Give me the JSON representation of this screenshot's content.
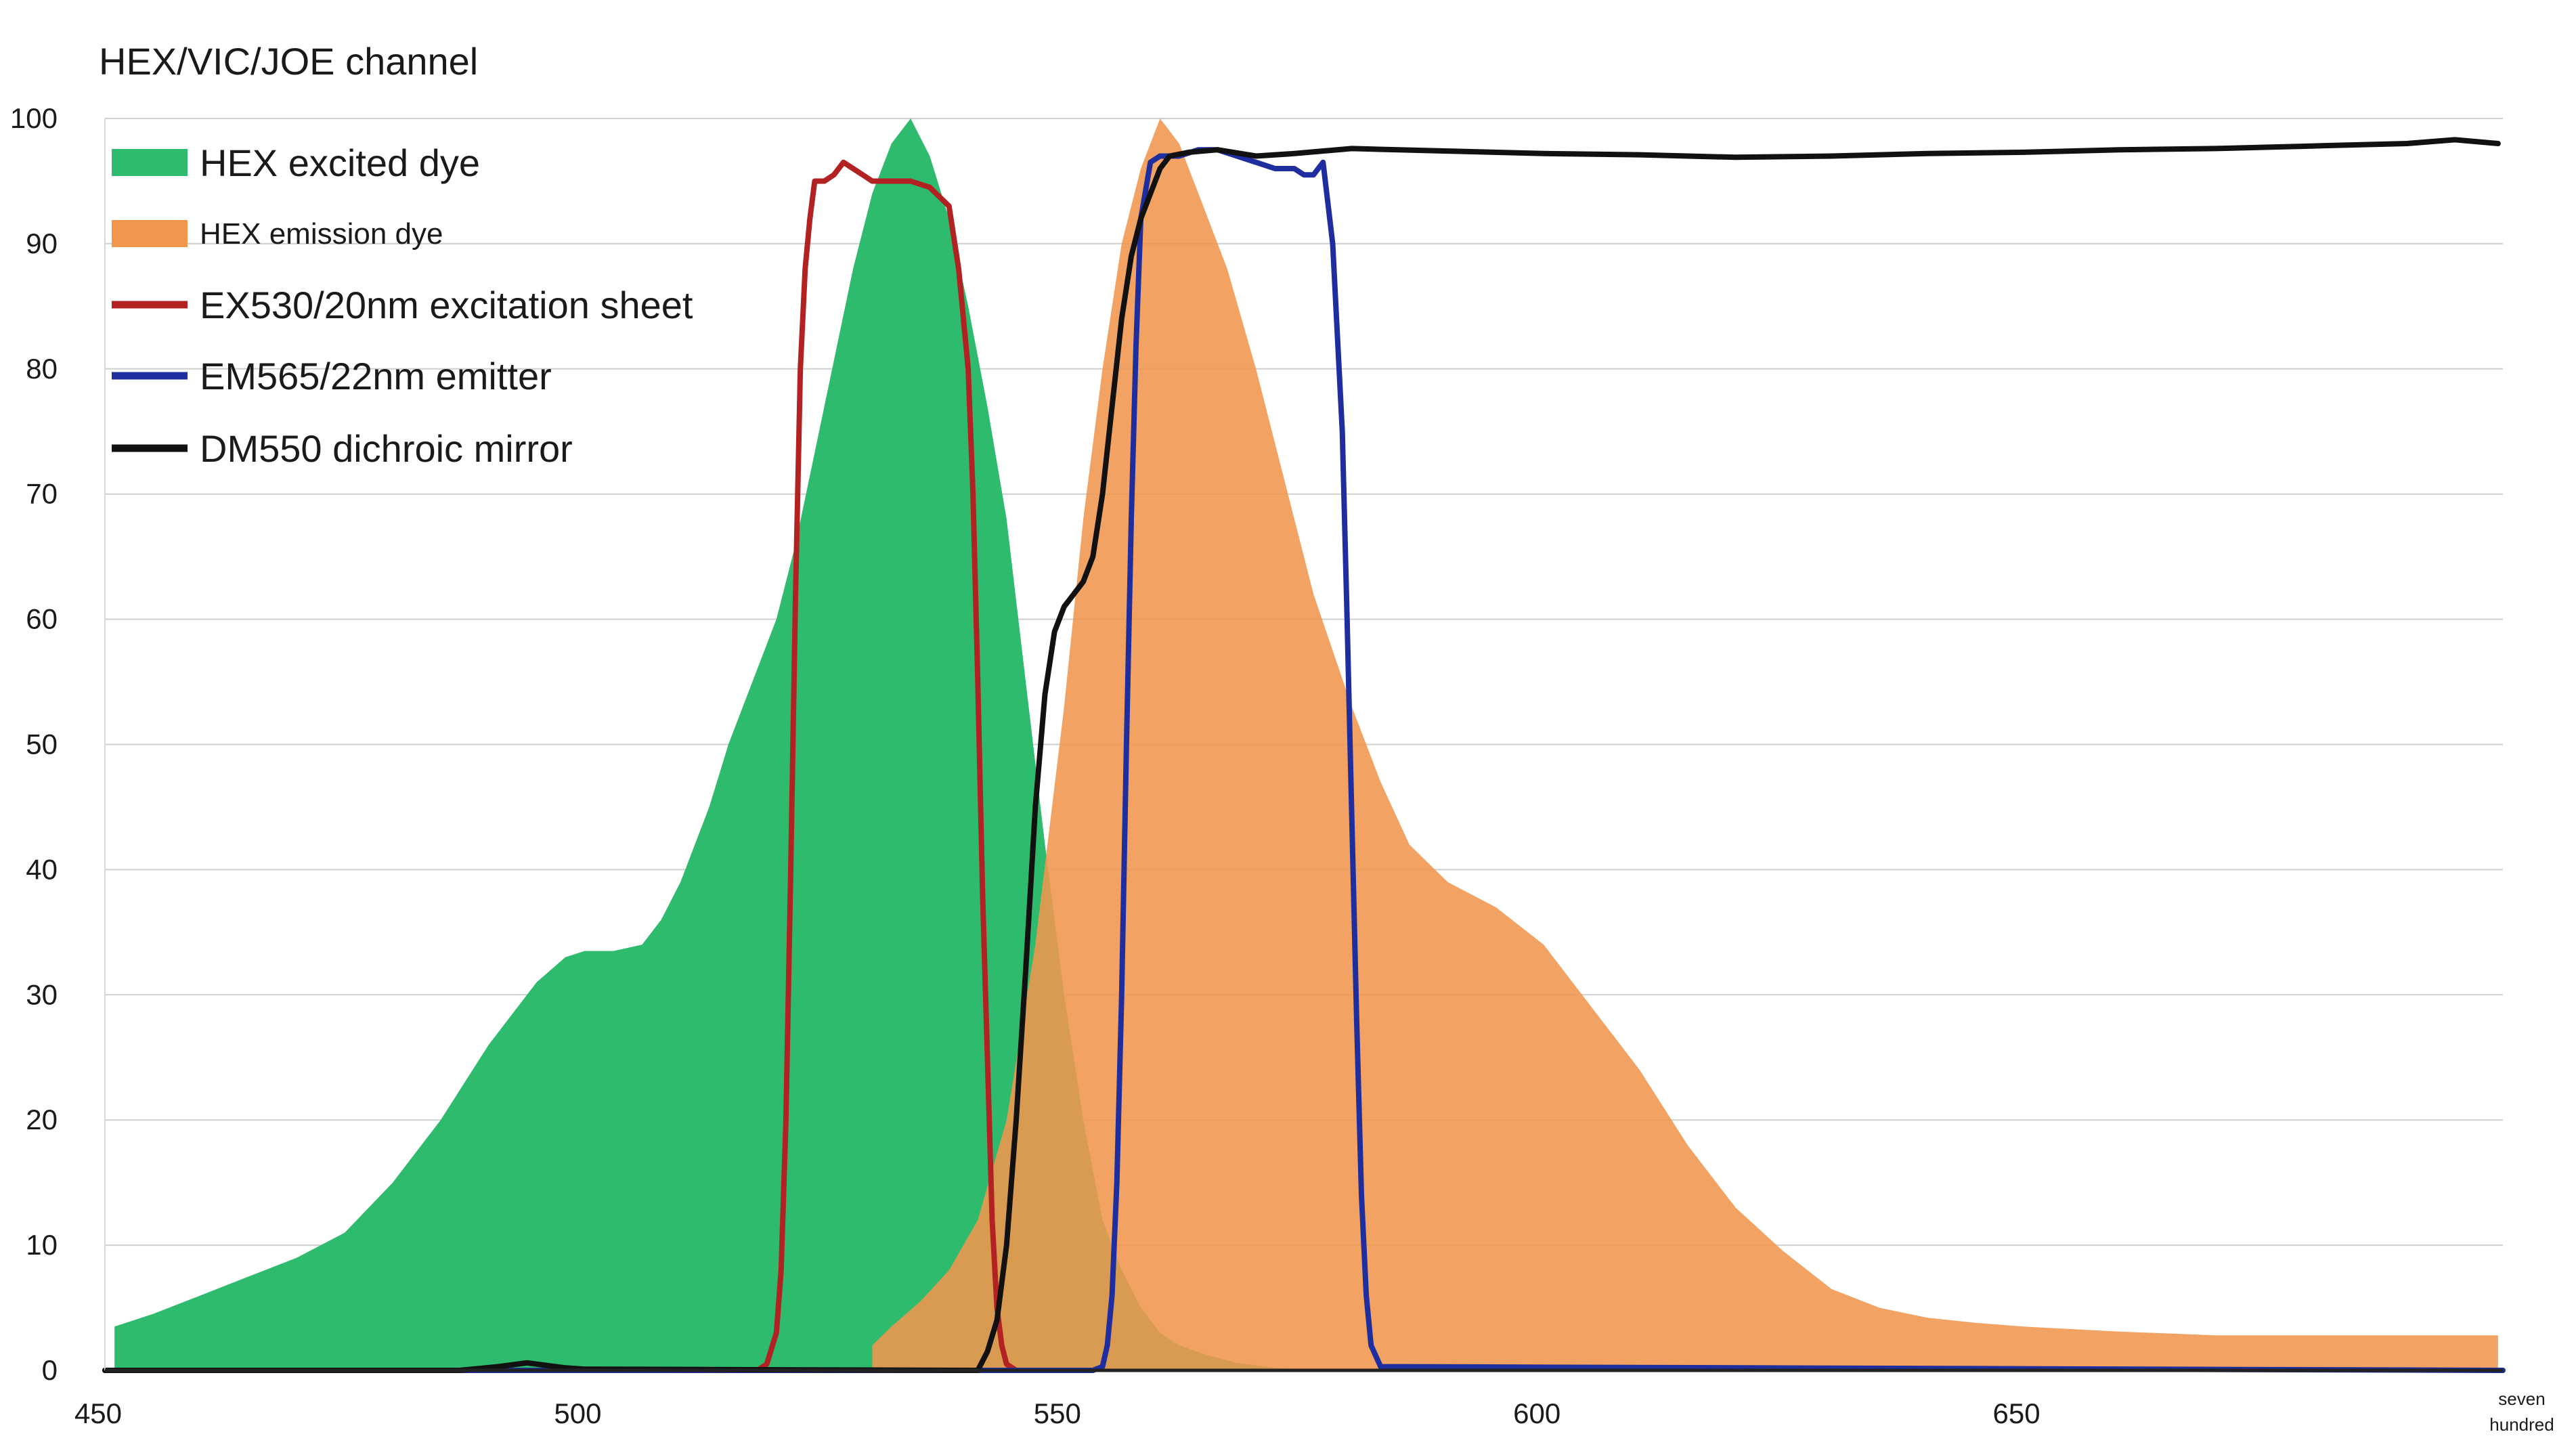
{
  "chart_data": {
    "type": "area",
    "title": "HEX/VIC/JOE channel",
    "xlabel": "",
    "ylabel": "",
    "xlim": [
      450,
      700
    ],
    "ylim": [
      0,
      100
    ],
    "grid": true,
    "legend_position": "top-left",
    "y_ticks": [
      "0",
      "10",
      "20",
      "30",
      "40",
      "50",
      "60",
      "70",
      "80",
      "90",
      "100"
    ],
    "x_ticks": [
      {
        "value": 450,
        "label": "450"
      },
      {
        "value": 500,
        "label": "500"
      },
      {
        "value": 550,
        "label": "550"
      },
      {
        "value": 600,
        "label": "600"
      },
      {
        "value": 650,
        "label": "650"
      },
      {
        "value": 700,
        "label": "seven hundred",
        "lines": [
          "seven",
          "hundred"
        ]
      }
    ],
    "series": [
      {
        "name": "HEX excited dye",
        "style": "area",
        "color": "#2fbb6e",
        "x": [
          451,
          455,
          460,
          465,
          470,
          475,
          480,
          485,
          490,
          495,
          498,
          500,
          503,
          506,
          508,
          510,
          513,
          515,
          518,
          520,
          522,
          525,
          528,
          530,
          532,
          534,
          536,
          538,
          540,
          542,
          544,
          546,
          548,
          550,
          552,
          554,
          556,
          558,
          560,
          562,
          565,
          568,
          572,
          576,
          578
        ],
        "values": [
          3.5,
          4.5,
          6,
          7.5,
          9,
          11,
          15,
          20,
          26,
          31,
          33,
          33.5,
          33.5,
          34,
          36,
          39,
          45,
          50,
          56,
          60,
          66,
          77,
          88,
          94,
          98,
          100,
          97,
          92,
          85,
          77,
          68,
          55,
          42,
          30,
          20,
          12,
          8,
          5,
          3,
          2,
          1.2,
          0.6,
          0.2,
          0.05,
          0
        ]
      },
      {
        "name": "HEX emission dye",
        "style": "area",
        "color": "#f0964d",
        "x": [
          530,
          532,
          535,
          538,
          541,
          544,
          547,
          550,
          552,
          554,
          556,
          558,
          560,
          562,
          564,
          567,
          570,
          573,
          576,
          580,
          583,
          586,
          590,
          595,
          600,
          605,
          610,
          615,
          620,
          625,
          630,
          635,
          640,
          645,
          650,
          660,
          670,
          675,
          680,
          690,
          699.5
        ],
        "values": [
          2,
          3.5,
          5.5,
          8,
          12,
          20,
          34,
          53,
          68,
          80,
          90,
          96,
          100,
          98,
          94,
          88,
          80,
          71,
          62,
          53,
          47,
          42,
          39,
          37,
          34,
          29,
          24,
          18,
          13,
          9.5,
          6.5,
          5,
          4.2,
          3.8,
          3.5,
          3.1,
          2.8,
          2.8,
          2.8,
          2.8,
          2.8
        ]
      },
      {
        "name": "EX530/20nm excitation sheet",
        "style": "line",
        "color": "#b22222",
        "x": [
          450,
          518,
          519,
          520,
          520.5,
          521,
          521.5,
          522,
          522.5,
          523,
          523.5,
          524,
          525,
          526,
          527,
          528,
          529,
          530,
          532,
          534,
          536,
          538,
          539,
          540,
          540.5,
          541,
          541.5,
          542,
          542.5,
          543,
          543.5,
          544,
          545,
          550
        ],
        "values": [
          0,
          0,
          0.5,
          3,
          8,
          20,
          40,
          62,
          80,
          88,
          92,
          95,
          95,
          95.5,
          96.5,
          96,
          95.5,
          95,
          95,
          95,
          94.5,
          93,
          88,
          80,
          70,
          55,
          38,
          25,
          12,
          5,
          2,
          0.5,
          0,
          0
        ]
      },
      {
        "name": "EM565/22nm emitter",
        "style": "line",
        "color": "#1e2e9e",
        "x": [
          450,
          553,
          554,
          554.5,
          555,
          555.5,
          556,
          556.5,
          557,
          557.5,
          558,
          559,
          560,
          562,
          564,
          566,
          568,
          570,
          572,
          574,
          575,
          576,
          577,
          578,
          579,
          579.5,
          580,
          580.5,
          581,
          581.5,
          582,
          583,
          700
        ],
        "values": [
          0,
          0,
          0.3,
          2,
          6,
          15,
          30,
          50,
          68,
          82,
          92,
          96.5,
          97,
          97,
          97.5,
          97.5,
          97,
          96.5,
          96,
          96,
          95.5,
          95.5,
          96.5,
          90,
          75,
          60,
          44,
          28,
          14,
          6,
          2,
          0.3,
          0
        ]
      },
      {
        "name": "DM550 dichroic mirror",
        "style": "line",
        "color": "#111111",
        "x": [
          450,
          487,
          491,
          494,
          496,
          498,
          500,
          541,
          542,
          543,
          544,
          545,
          546,
          547,
          548,
          549,
          550,
          551,
          552,
          553,
          554,
          555,
          556,
          557,
          558,
          559,
          560,
          561,
          563,
          566,
          570,
          574,
          580,
          590,
          600,
          610,
          620,
          630,
          640,
          650,
          660,
          670,
          680,
          690,
          695,
          699.5
        ],
        "values": [
          0,
          0,
          0.3,
          0.6,
          0.4,
          0.2,
          0.1,
          0,
          1.5,
          4,
          10,
          20,
          32,
          45,
          54,
          59,
          61,
          62,
          63,
          65,
          70,
          77,
          84,
          89,
          92,
          94,
          96,
          97,
          97.3,
          97.5,
          97,
          97.2,
          97.6,
          97.4,
          97.2,
          97.1,
          96.9,
          97,
          97.2,
          97.3,
          97.5,
          97.6,
          97.8,
          98,
          98.3,
          98
        ]
      }
    ]
  }
}
